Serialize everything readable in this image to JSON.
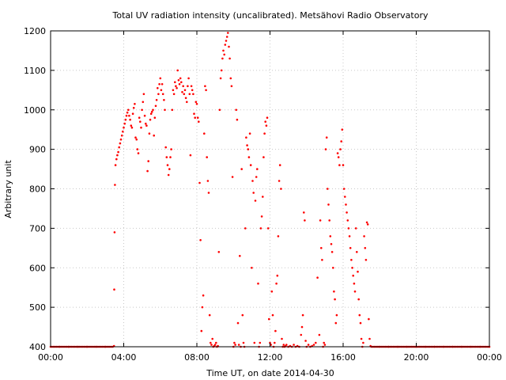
{
  "chart_data": {
    "type": "scatter",
    "title": "Total UV radiation intensity (uncalibrated). Metsähovi Radio Observatory",
    "xlabel": "Time UT, on date 2014-04-30",
    "ylabel": "Arbitrary unit",
    "x_unit": "hours UT",
    "xlim": [
      0,
      24
    ],
    "ylim": [
      400,
      1200
    ],
    "x_tick_labels": [
      "00:00",
      "04:00",
      "08:00",
      "12:00",
      "16:00",
      "20:00",
      "00:00"
    ],
    "y_ticks": [
      400,
      500,
      600,
      700,
      800,
      900,
      1000,
      1100,
      1200
    ],
    "grid": true,
    "legend": "none",
    "colors": {
      "points": "#ff0000",
      "axes": "#000000",
      "grid": "#c8c8c8"
    },
    "series": [
      {
        "points": [
          [
            0.0,
            400
          ],
          [
            0.5,
            400
          ],
          [
            1.0,
            400
          ],
          [
            1.5,
            400
          ],
          [
            2.0,
            400
          ],
          [
            2.5,
            400
          ],
          [
            3.0,
            400
          ],
          [
            3.4,
            400
          ],
          [
            3.47,
            402
          ],
          [
            3.48,
            545
          ],
          [
            3.5,
            690
          ],
          [
            3.52,
            810
          ],
          [
            3.55,
            860
          ],
          [
            3.6,
            875
          ],
          [
            3.65,
            885
          ],
          [
            3.7,
            893
          ],
          [
            3.75,
            905
          ],
          [
            3.8,
            915
          ],
          [
            3.85,
            925
          ],
          [
            3.9,
            935
          ],
          [
            3.95,
            945
          ],
          [
            4.0,
            955
          ],
          [
            4.05,
            965
          ],
          [
            4.1,
            975
          ],
          [
            4.15,
            985
          ],
          [
            4.2,
            993
          ],
          [
            4.25,
            1000
          ],
          [
            4.3,
            985
          ],
          [
            4.35,
            975
          ],
          [
            4.4,
            960
          ],
          [
            4.45,
            955
          ],
          [
            4.5,
            990
          ],
          [
            4.55,
            1005
          ],
          [
            4.6,
            1015
          ],
          [
            4.65,
            930
          ],
          [
            4.7,
            925
          ],
          [
            4.75,
            900
          ],
          [
            4.8,
            890
          ],
          [
            4.85,
            980
          ],
          [
            4.9,
            970
          ],
          [
            4.95,
            955
          ],
          [
            5.0,
            1000
          ],
          [
            5.05,
            1020
          ],
          [
            5.1,
            1040
          ],
          [
            5.15,
            985
          ],
          [
            5.2,
            965
          ],
          [
            5.25,
            960
          ],
          [
            5.3,
            845
          ],
          [
            5.35,
            870
          ],
          [
            5.4,
            940
          ],
          [
            5.45,
            975
          ],
          [
            5.5,
            990
          ],
          [
            5.55,
            995
          ],
          [
            5.6,
            1000
          ],
          [
            5.65,
            935
          ],
          [
            5.7,
            980
          ],
          [
            5.75,
            1010
          ],
          [
            5.8,
            1025
          ],
          [
            5.85,
            1055
          ],
          [
            5.9,
            1040
          ],
          [
            5.95,
            1065
          ],
          [
            6.0,
            1080
          ],
          [
            6.05,
            1050
          ],
          [
            6.1,
            1065
          ],
          [
            6.15,
            1040
          ],
          [
            6.2,
            1025
          ],
          [
            6.25,
            1000
          ],
          [
            6.3,
            905
          ],
          [
            6.35,
            880
          ],
          [
            6.4,
            860
          ],
          [
            6.45,
            835
          ],
          [
            6.5,
            850
          ],
          [
            6.55,
            880
          ],
          [
            6.6,
            900
          ],
          [
            6.65,
            1000
          ],
          [
            6.7,
            1050
          ],
          [
            6.75,
            1040
          ],
          [
            6.8,
            1070
          ],
          [
            6.85,
            1060
          ],
          [
            6.9,
            1055
          ],
          [
            6.95,
            1100
          ],
          [
            7.0,
            1075
          ],
          [
            7.05,
            1065
          ],
          [
            7.1,
            1080
          ],
          [
            7.15,
            1070
          ],
          [
            7.2,
            1045
          ],
          [
            7.25,
            1060
          ],
          [
            7.3,
            1040
          ],
          [
            7.35,
            1050
          ],
          [
            7.4,
            1030
          ],
          [
            7.45,
            1020
          ],
          [
            7.5,
            1060
          ],
          [
            7.55,
            1080
          ],
          [
            7.6,
            1040
          ],
          [
            7.65,
            885
          ],
          [
            7.7,
            1060
          ],
          [
            7.75,
            1050
          ],
          [
            7.8,
            1040
          ],
          [
            7.85,
            990
          ],
          [
            7.9,
            980
          ],
          [
            7.95,
            1020
          ],
          [
            8.0,
            1015
          ],
          [
            8.05,
            980
          ],
          [
            8.1,
            970
          ],
          [
            8.15,
            815
          ],
          [
            8.2,
            670
          ],
          [
            8.25,
            440
          ],
          [
            8.3,
            500
          ],
          [
            8.35,
            530
          ],
          [
            8.4,
            940
          ],
          [
            8.45,
            1060
          ],
          [
            8.5,
            1050
          ],
          [
            8.55,
            880
          ],
          [
            8.6,
            820
          ],
          [
            8.65,
            790
          ],
          [
            8.7,
            480
          ],
          [
            8.75,
            410
          ],
          [
            8.8,
            405
          ],
          [
            8.85,
            420
          ],
          [
            8.9,
            400
          ],
          [
            8.95,
            402
          ],
          [
            9.0,
            405
          ],
          [
            9.05,
            410
          ],
          [
            9.1,
            400
          ],
          [
            9.15,
            402
          ],
          [
            9.2,
            640
          ],
          [
            9.25,
            1000
          ],
          [
            9.3,
            1080
          ],
          [
            9.35,
            1100
          ],
          [
            9.4,
            1130
          ],
          [
            9.45,
            1150
          ],
          [
            9.5,
            1140
          ],
          [
            9.55,
            1165
          ],
          [
            9.6,
            1175
          ],
          [
            9.65,
            1185
          ],
          [
            9.7,
            1195
          ],
          [
            9.75,
            1160
          ],
          [
            9.8,
            1130
          ],
          [
            9.85,
            1080
          ],
          [
            9.9,
            1060
          ],
          [
            9.95,
            830
          ],
          [
            10.0,
            400
          ],
          [
            10.05,
            410
          ],
          [
            10.1,
            405
          ],
          [
            10.15,
            1000
          ],
          [
            10.2,
            975
          ],
          [
            10.25,
            460
          ],
          [
            10.3,
            405
          ],
          [
            10.35,
            630
          ],
          [
            10.4,
            400
          ],
          [
            10.45,
            850
          ],
          [
            10.5,
            480
          ],
          [
            10.55,
            410
          ],
          [
            10.6,
            400
          ],
          [
            10.65,
            700
          ],
          [
            10.7,
            930
          ],
          [
            10.75,
            910
          ],
          [
            10.8,
            900
          ],
          [
            10.85,
            880
          ],
          [
            10.9,
            940
          ],
          [
            10.95,
            860
          ],
          [
            11.0,
            600
          ],
          [
            11.05,
            820
          ],
          [
            11.1,
            790
          ],
          [
            11.15,
            410
          ],
          [
            11.2,
            770
          ],
          [
            11.25,
            830
          ],
          [
            11.3,
            850
          ],
          [
            11.35,
            560
          ],
          [
            11.4,
            400
          ],
          [
            11.45,
            410
          ],
          [
            11.5,
            700
          ],
          [
            11.55,
            730
          ],
          [
            11.6,
            780
          ],
          [
            11.65,
            880
          ],
          [
            11.7,
            940
          ],
          [
            11.75,
            970
          ],
          [
            11.8,
            960
          ],
          [
            11.85,
            980
          ],
          [
            11.9,
            700
          ],
          [
            11.95,
            470
          ],
          [
            12.0,
            410
          ],
          [
            12.05,
            405
          ],
          [
            12.1,
            540
          ],
          [
            12.15,
            480
          ],
          [
            12.2,
            400
          ],
          [
            12.25,
            410
          ],
          [
            12.3,
            440
          ],
          [
            12.35,
            560
          ],
          [
            12.4,
            580
          ],
          [
            12.45,
            680
          ],
          [
            12.5,
            820
          ],
          [
            12.55,
            860
          ],
          [
            12.6,
            800
          ],
          [
            12.65,
            420
          ],
          [
            12.7,
            400
          ],
          [
            12.75,
            405
          ],
          [
            12.8,
            400
          ],
          [
            12.85,
            402
          ],
          [
            12.9,
            405
          ],
          [
            13.0,
            400
          ],
          [
            13.1,
            402
          ],
          [
            13.2,
            400
          ],
          [
            13.3,
            405
          ],
          [
            13.4,
            400
          ],
          [
            13.5,
            402
          ],
          [
            13.6,
            400
          ],
          [
            13.7,
            430
          ],
          [
            13.75,
            450
          ],
          [
            13.8,
            480
          ],
          [
            13.85,
            740
          ],
          [
            13.9,
            720
          ],
          [
            13.95,
            415
          ],
          [
            14.0,
            400
          ],
          [
            14.1,
            405
          ],
          [
            14.2,
            400
          ],
          [
            14.3,
            402
          ],
          [
            14.4,
            405
          ],
          [
            14.5,
            410
          ],
          [
            14.6,
            575
          ],
          [
            14.7,
            430
          ],
          [
            14.75,
            720
          ],
          [
            14.8,
            650
          ],
          [
            14.85,
            620
          ],
          [
            14.9,
            400
          ],
          [
            14.95,
            410
          ],
          [
            15.0,
            405
          ],
          [
            15.05,
            900
          ],
          [
            15.1,
            930
          ],
          [
            15.15,
            800
          ],
          [
            15.2,
            760
          ],
          [
            15.25,
            720
          ],
          [
            15.3,
            680
          ],
          [
            15.35,
            660
          ],
          [
            15.4,
            640
          ],
          [
            15.45,
            600
          ],
          [
            15.5,
            540
          ],
          [
            15.55,
            520
          ],
          [
            15.6,
            460
          ],
          [
            15.65,
            480
          ],
          [
            15.7,
            890
          ],
          [
            15.75,
            880
          ],
          [
            15.8,
            860
          ],
          [
            15.85,
            900
          ],
          [
            15.9,
            920
          ],
          [
            15.95,
            950
          ],
          [
            16.0,
            860
          ],
          [
            16.05,
            800
          ],
          [
            16.1,
            780
          ],
          [
            16.15,
            760
          ],
          [
            16.2,
            740
          ],
          [
            16.25,
            720
          ],
          [
            16.3,
            700
          ],
          [
            16.35,
            680
          ],
          [
            16.4,
            650
          ],
          [
            16.45,
            620
          ],
          [
            16.5,
            600
          ],
          [
            16.55,
            580
          ],
          [
            16.6,
            560
          ],
          [
            16.65,
            540
          ],
          [
            16.7,
            700
          ],
          [
            16.75,
            640
          ],
          [
            16.8,
            590
          ],
          [
            16.85,
            520
          ],
          [
            16.9,
            480
          ],
          [
            16.95,
            460
          ],
          [
            17.0,
            420
          ],
          [
            17.05,
            400
          ],
          [
            17.1,
            410
          ],
          [
            17.15,
            680
          ],
          [
            17.2,
            650
          ],
          [
            17.25,
            620
          ],
          [
            17.3,
            715
          ],
          [
            17.35,
            710
          ],
          [
            17.4,
            470
          ],
          [
            17.45,
            420
          ],
          [
            17.5,
            402
          ],
          [
            17.55,
            400
          ],
          [
            18.0,
            400
          ],
          [
            18.5,
            400
          ],
          [
            19.0,
            400
          ],
          [
            19.5,
            400
          ],
          [
            20.0,
            400
          ],
          [
            20.5,
            400
          ],
          [
            21.0,
            400
          ],
          [
            21.5,
            400
          ],
          [
            22.0,
            400
          ],
          [
            22.5,
            400
          ],
          [
            23.0,
            400
          ],
          [
            23.5,
            400
          ],
          [
            24.0,
            400
          ]
        ]
      }
    ]
  }
}
